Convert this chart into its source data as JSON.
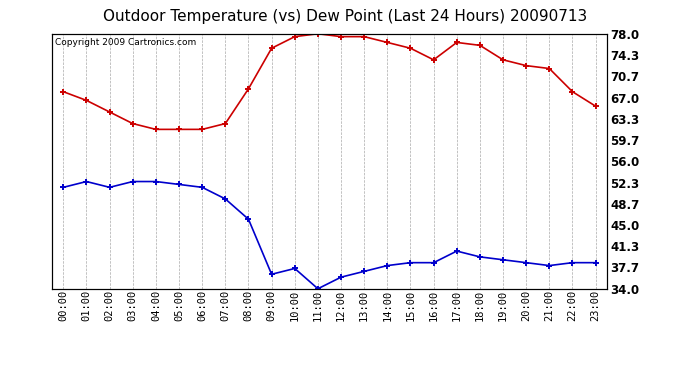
{
  "title": "Outdoor Temperature (vs) Dew Point (Last 24 Hours) 20090713",
  "copyright_text": "Copyright 2009 Cartronics.com",
  "x_labels": [
    "00:00",
    "01:00",
    "02:00",
    "03:00",
    "04:00",
    "05:00",
    "06:00",
    "07:00",
    "08:00",
    "09:00",
    "10:00",
    "11:00",
    "12:00",
    "13:00",
    "14:00",
    "15:00",
    "16:00",
    "17:00",
    "18:00",
    "19:00",
    "20:00",
    "21:00",
    "22:00",
    "23:00"
  ],
  "temp_data": [
    68.0,
    66.5,
    64.5,
    62.5,
    61.5,
    61.5,
    61.5,
    62.5,
    68.5,
    75.5,
    77.5,
    78.0,
    77.5,
    77.5,
    76.5,
    75.5,
    73.5,
    76.5,
    76.0,
    73.5,
    72.5,
    72.0,
    68.0,
    65.5
  ],
  "dew_data": [
    51.5,
    52.5,
    51.5,
    52.5,
    52.5,
    52.0,
    51.5,
    49.5,
    46.0,
    36.5,
    37.5,
    34.0,
    36.0,
    37.0,
    38.0,
    38.5,
    38.5,
    40.5,
    39.5,
    39.0,
    38.5,
    38.0,
    38.5,
    38.5
  ],
  "temp_color": "#cc0000",
  "dew_color": "#0000cc",
  "bg_color": "#ffffff",
  "plot_bg_color": "#ffffff",
  "grid_color": "#aaaaaa",
  "ymin": 34.0,
  "ymax": 78.0,
  "yticks_right": [
    34.0,
    37.7,
    41.3,
    45.0,
    48.7,
    52.3,
    56.0,
    59.7,
    63.3,
    67.0,
    70.7,
    74.3,
    78.0
  ],
  "title_fontsize": 11,
  "copyright_fontsize": 6.5,
  "tick_fontsize": 7.5,
  "ytick_fontsize": 8.5
}
